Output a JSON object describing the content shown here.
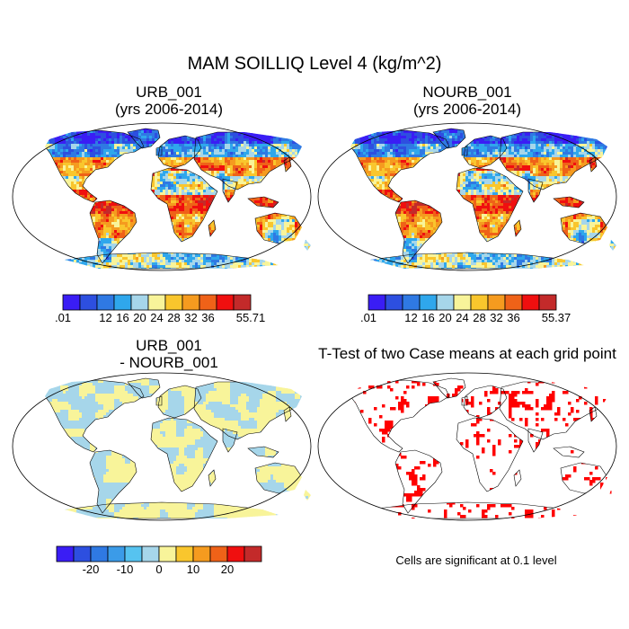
{
  "main_title": "MAM SOILLIQ Level 4 (kg/m^2)",
  "colors": {
    "scale": [
      "#3a1df5",
      "#2d4fe0",
      "#2f79e3",
      "#2fa7ec",
      "#a6d6ea",
      "#f8f49a",
      "#f9c62d",
      "#f59b1f",
      "#ef6218",
      "#f00f0f",
      "#c32a2a"
    ],
    "diff_scale": [
      "#3a1df5",
      "#2d4fe0",
      "#2f79e3",
      "#3b9be8",
      "#56c3f0",
      "#a6d6ea",
      "#f8f49a",
      "#f9c62d",
      "#f59b1f",
      "#ef6218",
      "#f00f0f",
      "#c32a2a"
    ],
    "significant": "#ff0000",
    "coast": "#000000"
  },
  "chart_data": [
    {
      "type": "heatmap",
      "id": "urb",
      "title_line1": "URB_001",
      "title_line2": "(yrs 2006-2014)",
      "colorbar_labels": [
        ".01",
        "12",
        "16",
        "20",
        "24",
        "28",
        "32",
        "36",
        "55.71"
      ],
      "colorbar_range": [
        0.01,
        55.71
      ]
    },
    {
      "type": "heatmap",
      "id": "nourb",
      "title_line1": "NOURB_001",
      "title_line2": "(yrs 2006-2014)",
      "colorbar_labels": [
        ".01",
        "12",
        "16",
        "20",
        "24",
        "28",
        "32",
        "36",
        "55.37"
      ],
      "colorbar_range": [
        0.01,
        55.37
      ]
    },
    {
      "type": "heatmap",
      "id": "diff",
      "title_line1": "URB_001",
      "title_line2": "- NOURB_001",
      "colorbar_labels": [
        "-20",
        "-10",
        "0",
        "10",
        "20"
      ],
      "colorbar_range": [
        -25,
        25
      ]
    },
    {
      "type": "heatmap",
      "id": "ttest",
      "title_line1": "T-Test of two Case means at each grid point",
      "note": "Cells are significant at 0.1 level"
    }
  ]
}
